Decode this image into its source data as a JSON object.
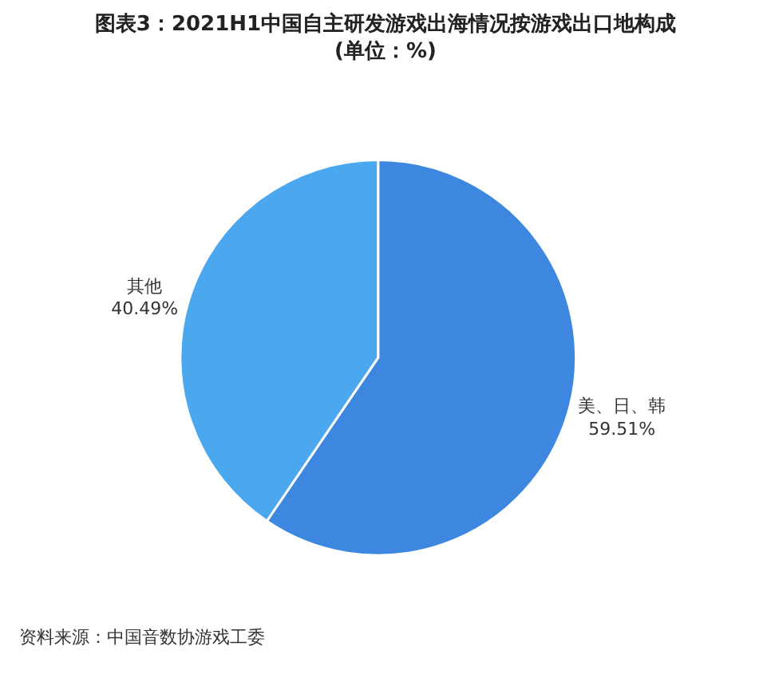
{
  "chart_data": {
    "type": "pie",
    "title": "图表3：2021H1中国自主研发游戏出海情况按游戏出口地构成\n(单位：%)",
    "categories": [
      "美、日、韩",
      "其他"
    ],
    "values": [
      59.51,
      40.49
    ],
    "value_labels": [
      "59.51%",
      "40.49%"
    ],
    "colors": [
      "#3d87e0",
      "#4ba8ee"
    ],
    "legend": false,
    "annotations": [
      "资料来源：中国音数协游戏工委"
    ]
  }
}
